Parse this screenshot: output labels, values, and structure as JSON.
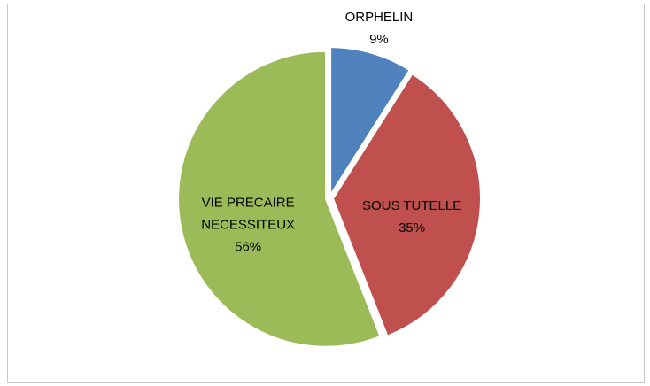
{
  "chart_data": {
    "type": "pie",
    "categories": [
      "ORPHELIN",
      "SOUS TUTELLE",
      "VIE PRECAIRE NECESSITEUX"
    ],
    "values": [
      9,
      35,
      56
    ],
    "value_labels": [
      "9%",
      "35%",
      "56%"
    ],
    "colors": [
      "#4f81bd",
      "#c0504d",
      "#9bbb59"
    ]
  }
}
